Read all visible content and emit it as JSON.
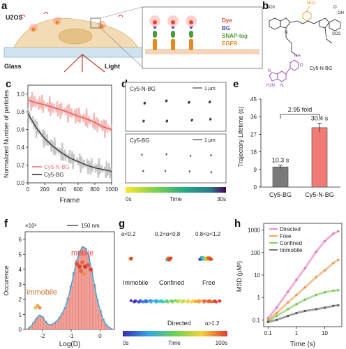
{
  "panel_labels": {
    "a": "a",
    "b": "b",
    "c": "c",
    "d": "d",
    "e": "e",
    "f": "f",
    "g": "g",
    "h": "h"
  },
  "panel_a": {
    "cell_label": "U2OS",
    "glass_label": "Glass",
    "light_label": "Light",
    "legend": [
      {
        "label": "Dye",
        "color": "#e0453a"
      },
      {
        "label": "BG",
        "color": "#4a4ab8"
      },
      {
        "label": "SNAP-tag",
        "color": "#4c9a3a"
      },
      {
        "label": "EGFR",
        "color": "#e8891e"
      }
    ]
  },
  "panel_b": {
    "compound_label": "Cy5-N-BG",
    "atom_labels": {
      "so3_top": "SO3",
      "no2": "NO2",
      "oh": "OH",
      "o": "O",
      "n_plus": "N",
      "so3_bottom": "SO3",
      "nh": "NH",
      "h2n": "H2N",
      "n_ring": "N",
      "nh_ring": "N",
      "o_ring": "O"
    }
  },
  "panel_c": {
    "ylabel": "Normalized Number of particles",
    "xlabel": "Frame",
    "yticks": [
      "0.0",
      "0.2",
      "0.4",
      "0.6",
      "0.8",
      "1.0"
    ],
    "xticks": [
      "0",
      "200",
      "400",
      "600",
      "800",
      "1000"
    ],
    "legend": [
      {
        "label": "Cy5-N-BG",
        "color": "#e77b78"
      },
      {
        "label": "Cy5-BG",
        "color": "#333333"
      }
    ]
  },
  "panel_d": {
    "box1_label": "Cy5-N-BG",
    "box2_label": "Cy5-BG",
    "scale_label": "1 μm",
    "colorbar_start": "0s",
    "colorbar_mid": "Time",
    "colorbar_end": "30s"
  },
  "panel_e": {
    "ylabel": "Trajectory Lifetime (s)",
    "fold_label": "2.95 fold",
    "yticks": [
      "0",
      "9",
      "18",
      "27",
      "36",
      "45"
    ],
    "ylim": [
      0,
      45
    ],
    "categories": [
      "Cy5-BG",
      "Cy5-N-BG"
    ],
    "bar_labels": [
      "10.3 s",
      "30.4 s"
    ],
    "values": [
      10.3,
      30.4
    ],
    "errors": [
      0.9,
      2.3
    ],
    "colors": [
      "#7a7a7a",
      "#f07a74"
    ]
  },
  "panel_f": {
    "multiplier": "×10²",
    "scale_label": "150 nm",
    "ylabel": "Occurence",
    "xlabel": "Log(D)",
    "xticks": [
      "-2",
      "-1",
      "0"
    ],
    "yticks": [
      "0",
      "1",
      "2",
      "3",
      "4",
      "5",
      "6"
    ],
    "mobile_label": "mobile",
    "immobile_label": "immobile"
  },
  "panel_g": {
    "labels": [
      "α<0.2",
      "0.2<α<0.8",
      "0.8<α<1.2",
      "α>1.2"
    ],
    "categories": [
      "Immobile",
      "Confined",
      "Free",
      "Directed"
    ],
    "colorbar_start": "0s",
    "colorbar_mid": "Time",
    "colorbar_end": "100s"
  },
  "panel_h": {
    "ylabel": "MSD (μM²)",
    "xlabel": "Time (s)",
    "xticks": [
      "0.1",
      "1",
      "10"
    ],
    "yticks": [
      "0.1",
      "1",
      "10",
      "100",
      "1000"
    ],
    "legend": [
      {
        "label": "Directed",
        "color": "#e76fb2"
      },
      {
        "label": "Free",
        "color": "#f0913a"
      },
      {
        "label": "Confined",
        "color": "#6fc24d"
      },
      {
        "label": "Immobile",
        "color": "#555555"
      }
    ]
  },
  "chart_data": [
    {
      "type": "line",
      "title": "",
      "xlabel": "Frame",
      "ylabel": "Normalized Number of particles",
      "xlim": [
        0,
        1000
      ],
      "ylim": [
        0,
        1.1
      ],
      "series": [
        {
          "name": "Cy5-N-BG",
          "x": [
            0,
            100,
            200,
            300,
            400,
            500,
            600,
            700,
            800,
            900,
            1000
          ],
          "values": [
            0.93,
            0.9,
            0.88,
            0.85,
            0.82,
            0.79,
            0.75,
            0.72,
            0.68,
            0.63,
            0.6
          ]
        },
        {
          "name": "Cy5-BG",
          "x": [
            0,
            100,
            200,
            300,
            400,
            500,
            600,
            700,
            800,
            900,
            1000
          ],
          "values": [
            0.78,
            0.62,
            0.5,
            0.41,
            0.34,
            0.28,
            0.24,
            0.2,
            0.17,
            0.15,
            0.13
          ]
        }
      ]
    },
    {
      "type": "bar",
      "title": "",
      "ylabel": "Trajectory Lifetime (s)",
      "categories": [
        "Cy5-BG",
        "Cy5-N-BG"
      ],
      "values": [
        10.3,
        30.4
      ],
      "ylim": [
        0,
        45
      ]
    },
    {
      "type": "bar",
      "title": "",
      "xlabel": "Log(D)",
      "ylabel": "Occurence",
      "x": [
        -2.5,
        -2.4,
        -2.3,
        -2.2,
        -2.1,
        -2.0,
        -1.9,
        -1.8,
        -1.7,
        -1.6,
        -1.5,
        -1.4,
        -1.3,
        -1.2,
        -1.1,
        -1.0,
        -0.9,
        -0.8,
        -0.7,
        -0.6,
        -0.5,
        -0.4,
        -0.3,
        -0.2,
        -0.1,
        0.0,
        0.1,
        0.2,
        0.3,
        0.4
      ],
      "values": [
        0.05,
        0.2,
        0.45,
        0.75,
        0.95,
        0.85,
        0.55,
        0.35,
        0.3,
        0.4,
        0.55,
        0.8,
        1.1,
        1.5,
        2.1,
        2.9,
        3.8,
        4.6,
        5.2,
        5.5,
        5.4,
        4.9,
        4.0,
        3.0,
        2.0,
        1.3,
        0.7,
        0.35,
        0.15,
        0.05
      ],
      "ylim": [
        0,
        6.5
      ]
    },
    {
      "type": "scatter",
      "title": "",
      "xlabel": "Time (s)",
      "ylabel": "MSD (μM²)",
      "x_scale": "log",
      "y_scale": "log",
      "xlim": [
        0.07,
        40
      ],
      "ylim": [
        0.05,
        2000
      ],
      "x": [
        0.1,
        0.2,
        0.5,
        1,
        2,
        5,
        10,
        20,
        30
      ],
      "series": [
        {
          "name": "Directed",
          "values": [
            0.12,
            0.35,
            1.8,
            6,
            20,
            110,
            320,
            700,
            900
          ]
        },
        {
          "name": "Free",
          "values": [
            0.1,
            0.2,
            0.6,
            1.3,
            2.8,
            8,
            16,
            34,
            48
          ]
        },
        {
          "name": "Confined",
          "values": [
            0.09,
            0.15,
            0.3,
            0.5,
            0.8,
            1.3,
            1.7,
            2.0,
            2.1
          ]
        },
        {
          "name": "Immobile",
          "values": [
            0.08,
            0.1,
            0.15,
            0.2,
            0.25,
            0.3,
            0.35,
            0.42,
            0.45
          ]
        }
      ]
    }
  ]
}
